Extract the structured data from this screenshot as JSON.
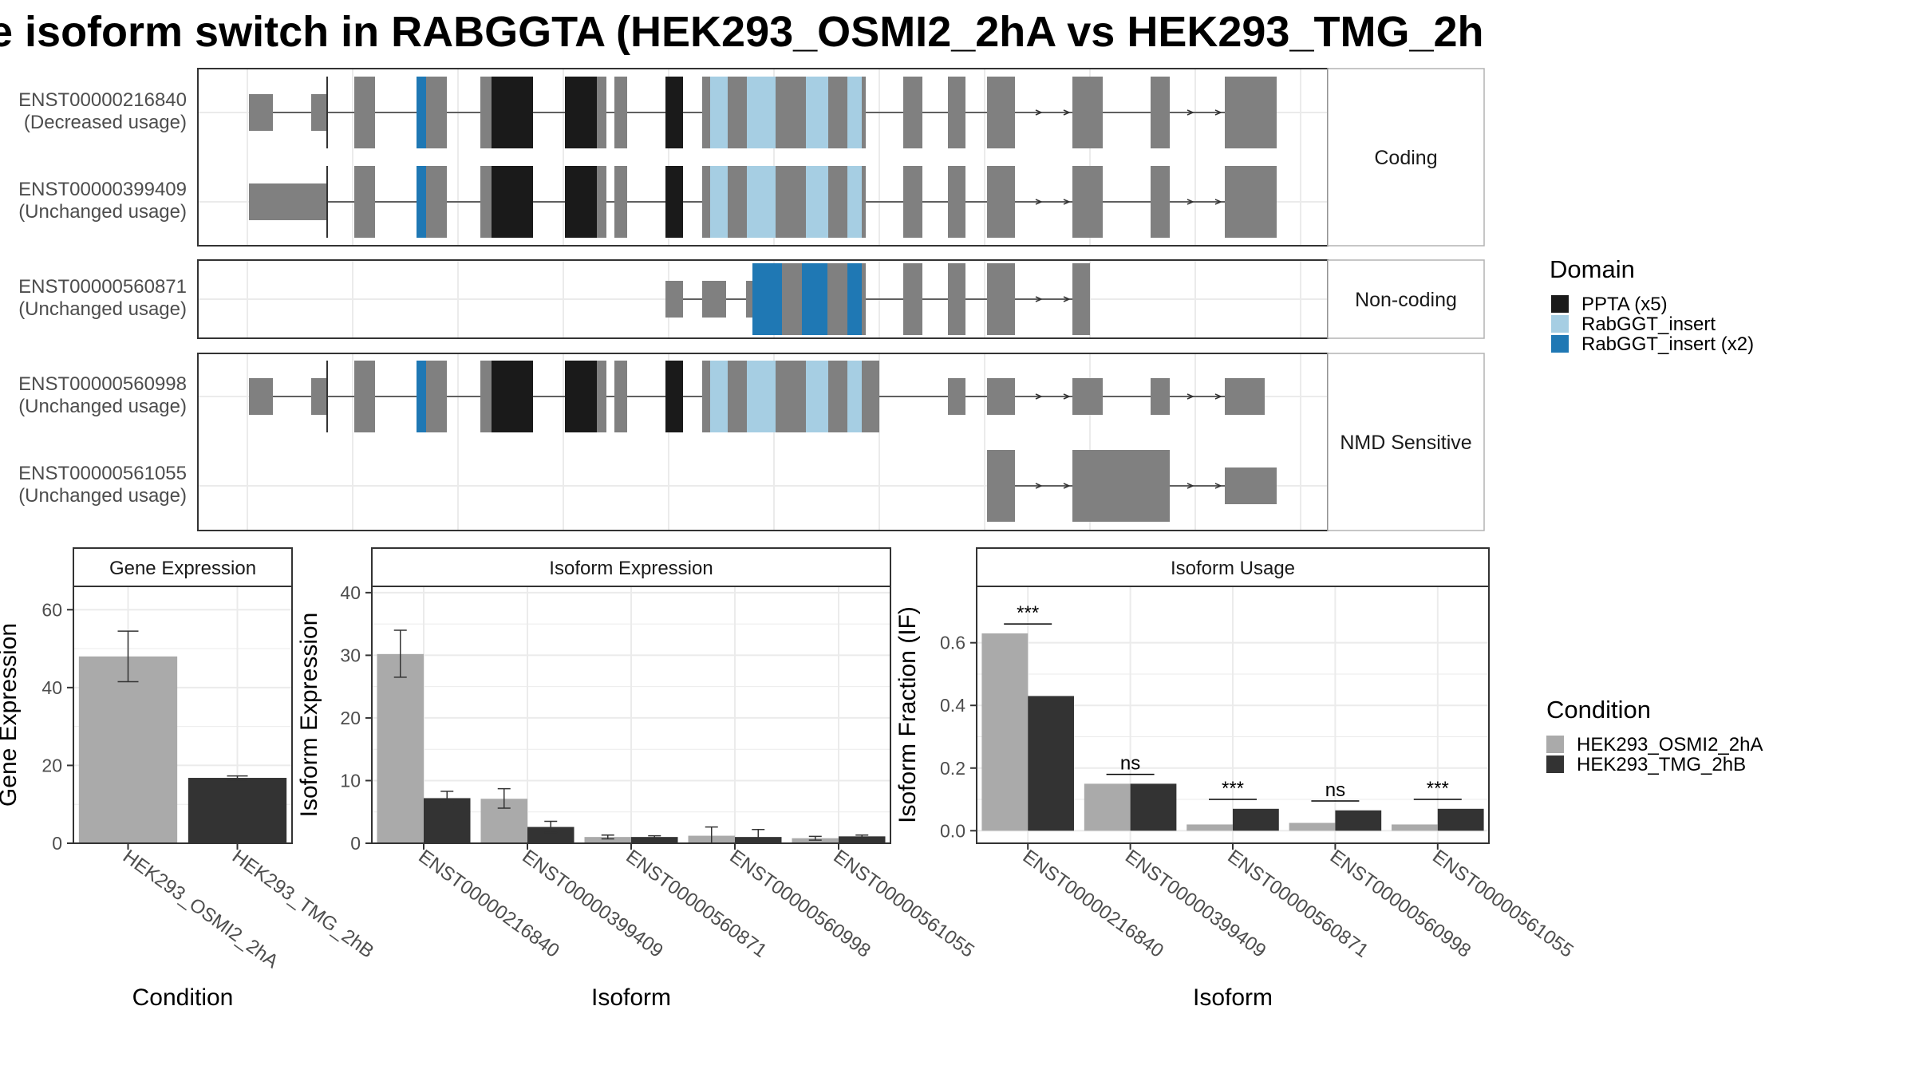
{
  "title": "e isoform switch in RABGGTA (HEK293_OSMI2_2hA vs HEK293_TMG_2h",
  "colors": {
    "PPTA (x5)": "#1a1a1a",
    "RabGGT_insert": "#a6cee3",
    "RabGGT_insert (x2)": "#1f78b4",
    "none": "#808080",
    "cond1": "#aaaaaa",
    "cond2": "#333333"
  },
  "domain_legend": {
    "title": "Domain",
    "items": [
      "PPTA (x5)",
      "RabGGT_insert",
      "RabGGT_insert (x2)"
    ]
  },
  "condition_legend": {
    "title": "Condition",
    "items": [
      "HEK293_OSMI2_2hA",
      "HEK293_TMG_2hB"
    ]
  },
  "transcript_panels": [
    {
      "strip": "Coding",
      "tracks": [
        {
          "id": "ENST00000216840",
          "usage": "(Decreased usage)",
          "row": 0
        },
        {
          "id": "ENST00000399409",
          "usage": "(Unchanged usage)",
          "row": 1
        }
      ]
    },
    {
      "strip": "Non-coding",
      "tracks": [
        {
          "id": "ENST00000560871",
          "usage": "(Unchanged usage)",
          "row": 0
        }
      ]
    },
    {
      "strip": "NMD Sensitive",
      "tracks": [
        {
          "id": "ENST00000560998",
          "usage": "(Unchanged usage)",
          "row": 0
        },
        {
          "id": "ENST00000561055",
          "usage": "(Unchanged usage)",
          "row": 1
        }
      ]
    }
  ],
  "chart_data": [
    {
      "type": "bar",
      "title": "Gene Expression",
      "xlabel": "Condition",
      "ylabel": "Gene Expression",
      "ylim": [
        0,
        66
      ],
      "yticks": [
        0,
        20,
        40,
        60
      ],
      "categories": [
        "HEK293_OSMI2_2hA",
        "HEK293_TMG_2hB"
      ],
      "values": [
        48.0,
        16.8
      ],
      "error": [
        [
          41.5,
          54.5
        ],
        [
          16.3,
          17.3
        ]
      ]
    },
    {
      "type": "bar",
      "title": "Isoform Expression",
      "xlabel": "Isoform",
      "ylabel": "Isoform Expression",
      "ylim": [
        0,
        41
      ],
      "yticks": [
        0,
        10,
        20,
        30,
        40
      ],
      "categories": [
        "ENST00000216840",
        "ENST00000399409",
        "ENST00000560871",
        "ENST00000560998",
        "ENST00000561055"
      ],
      "series": [
        {
          "name": "HEK293_OSMI2_2hA",
          "values": [
            30.2,
            7.1,
            1.0,
            1.2,
            0.8
          ],
          "error": [
            [
              26.5,
              34.0
            ],
            [
              5.6,
              8.7
            ],
            [
              0.7,
              1.3
            ],
            [
              0.0,
              2.6
            ],
            [
              0.5,
              1.1
            ]
          ]
        },
        {
          "name": "HEK293_TMG_2hB",
          "values": [
            7.2,
            2.6,
            1.0,
            1.0,
            1.1
          ],
          "error": [
            [
              6.2,
              8.3
            ],
            [
              1.7,
              3.5
            ],
            [
              0.8,
              1.2
            ],
            [
              0.0,
              2.2
            ],
            [
              0.9,
              1.3
            ]
          ]
        }
      ]
    },
    {
      "type": "bar",
      "title": "Isoform Usage",
      "xlabel": "Isoform",
      "ylabel": "Isoform Fraction (IF)",
      "ylim": [
        -0.04,
        0.78
      ],
      "yticks": [
        0.0,
        0.2,
        0.4,
        0.6
      ],
      "ytick_labels": [
        "0.0",
        "0.2",
        "0.4",
        "0.6"
      ],
      "categories": [
        "ENST00000216840",
        "ENST00000399409",
        "ENST00000560871",
        "ENST00000560998",
        "ENST00000561055"
      ],
      "series": [
        {
          "name": "HEK293_OSMI2_2hA",
          "values": [
            0.63,
            0.15,
            0.02,
            0.025,
            0.02
          ]
        },
        {
          "name": "HEK293_TMG_2hB",
          "values": [
            0.43,
            0.15,
            0.07,
            0.065,
            0.07
          ]
        }
      ],
      "significance": [
        "***",
        "ns",
        "***",
        "ns",
        "***"
      ],
      "significance_y": [
        0.66,
        0.18,
        0.1,
        0.095,
        0.1
      ]
    }
  ]
}
